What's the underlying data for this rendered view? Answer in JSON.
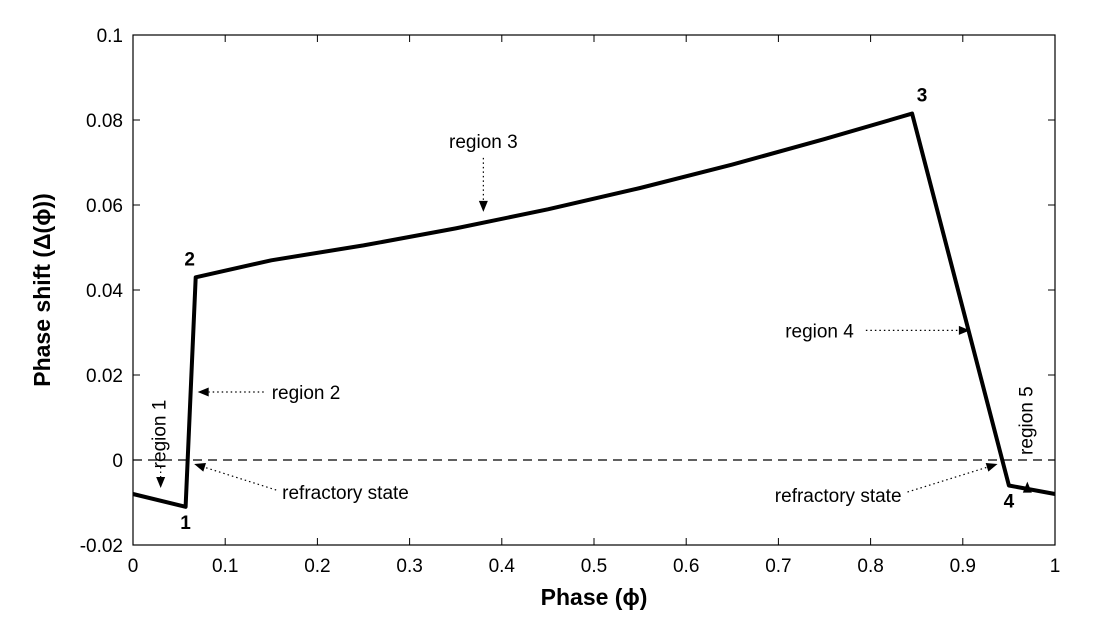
{
  "chart_data": {
    "type": "line",
    "title": "",
    "xlabel": "Phase (ϕ)",
    "ylabel": "Phase shift (Δ(ϕ))",
    "xlim": [
      0,
      1
    ],
    "ylim": [
      -0.02,
      0.1
    ],
    "xticks": [
      0,
      0.1,
      0.2,
      0.3,
      0.4,
      0.5,
      0.6,
      0.7,
      0.8,
      0.9,
      1
    ],
    "yticks": [
      -0.02,
      0,
      0.02,
      0.04,
      0.06,
      0.08,
      0.1
    ],
    "xtick_labels": [
      "0",
      "0.1",
      "0.2",
      "0.3",
      "0.4",
      "0.5",
      "0.6",
      "0.7",
      "0.8",
      "0.9",
      "1"
    ],
    "ytick_labels": [
      "-0.02",
      "0",
      "0.02",
      "0.04",
      "0.06",
      "0.08",
      "0.1"
    ],
    "grid": false,
    "box": true,
    "series": [
      {
        "x": [
          0,
          0.057,
          0.068,
          0.15,
          0.25,
          0.35,
          0.45,
          0.55,
          0.65,
          0.75,
          0.845,
          0.95,
          1.0
        ],
        "y": [
          -0.008,
          -0.011,
          0.043,
          0.047,
          0.0505,
          0.0545,
          0.059,
          0.064,
          0.0695,
          0.0755,
          0.0815,
          -0.006,
          -0.008
        ]
      }
    ],
    "reference_line": {
      "y": 0,
      "style": "dashed"
    },
    "point_labels": [
      {
        "text": "1",
        "x": 0.057,
        "y": -0.011
      },
      {
        "text": "2",
        "x": 0.068,
        "y": 0.043
      },
      {
        "text": "3",
        "x": 0.845,
        "y": 0.0815
      },
      {
        "text": "4",
        "x": 0.95,
        "y": -0.006
      }
    ],
    "annotations": [
      {
        "text": "region 1",
        "target": [
          0.03,
          -0.008
        ],
        "orientation": "vertical"
      },
      {
        "text": "region 2",
        "target": [
          0.068,
          0.016
        ]
      },
      {
        "text": "region 3",
        "target": [
          0.38,
          0.0565
        ]
      },
      {
        "text": "region 4",
        "target": [
          0.912,
          0.0305
        ]
      },
      {
        "text": "region 5",
        "target": [
          0.97,
          -0.0065
        ],
        "orientation": "vertical"
      },
      {
        "text": "refractory state",
        "target": [
          0.062,
          0
        ]
      },
      {
        "text": "refractory state",
        "target": [
          0.942,
          0
        ]
      }
    ]
  }
}
